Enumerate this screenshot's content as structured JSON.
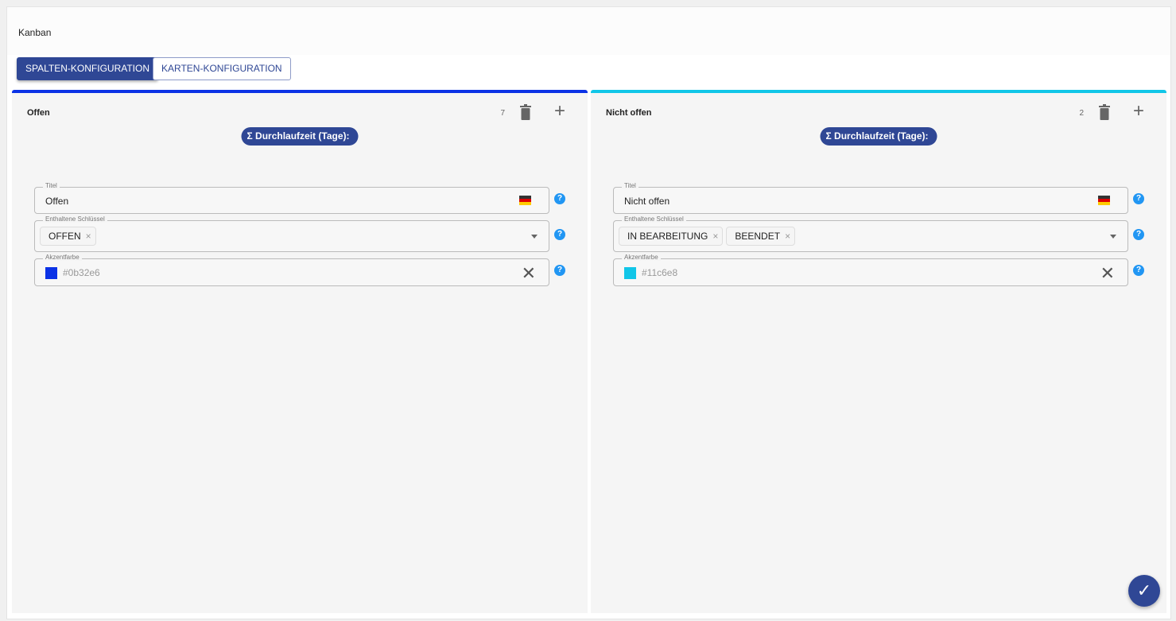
{
  "header": {
    "title": "Kanban"
  },
  "tabs": {
    "columns": "SPALTEN-KONFIGURATION",
    "cards": "KARTEN-KONFIGURATION"
  },
  "columns": [
    {
      "name": "Offen",
      "count": "7",
      "accent": "#0b32e6",
      "sum_label": "Σ Durchlaufzeit (Tage):",
      "title_label": "Titel",
      "title_value": "Offen",
      "keys_label": "Enthaltene Schlüssel",
      "keys": [
        "OFFEN"
      ],
      "color_label": "Akzentfarbe",
      "color_value": "#0b32e6"
    },
    {
      "name": "Nicht offen",
      "count": "2",
      "accent": "#11c6e8",
      "sum_label": "Σ Durchlaufzeit (Tage):",
      "title_label": "Titel",
      "title_value": "Nicht offen",
      "keys_label": "Enthaltene Schlüssel",
      "keys": [
        "IN BEARBEITUNG",
        "BEENDET"
      ],
      "color_label": "Akzentfarbe",
      "color_value": "#11c6e8"
    }
  ],
  "icons": {
    "help": "?",
    "remove": "×",
    "clear": "✕",
    "plus": "+",
    "confirm": "✓"
  }
}
